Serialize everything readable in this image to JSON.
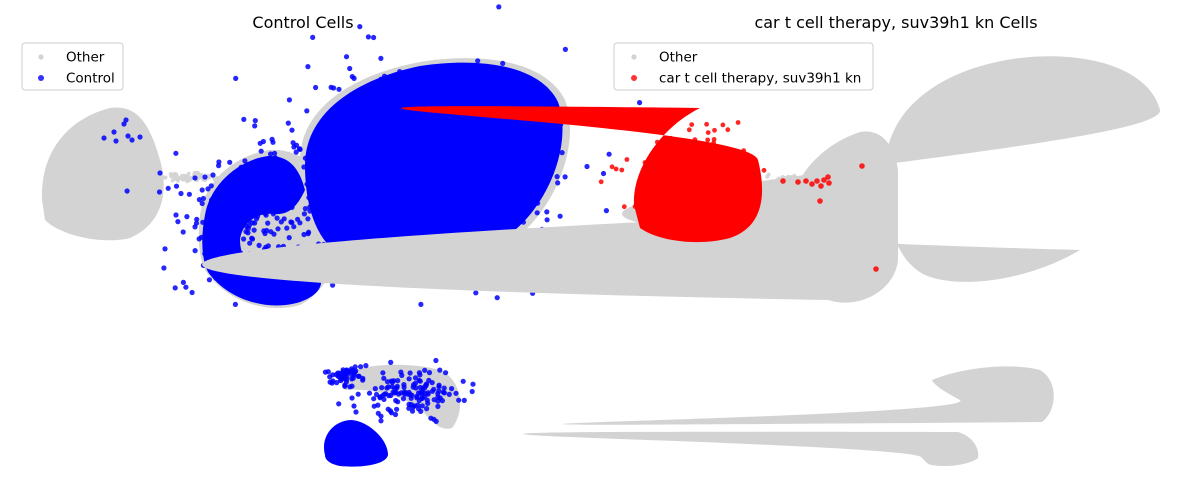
{
  "chart_data": [
    {
      "type": "scatter",
      "title": "Control Cells",
      "legend_position": "top-left",
      "grid": false,
      "axes_visible": false,
      "series": [
        {
          "name": "Other",
          "color": "#d3d3d3"
        },
        {
          "name": "Control",
          "color": "#0000ff"
        }
      ],
      "clusters": [
        {
          "region": "left-island",
          "other": true,
          "highlight_count_visible": "sparse"
        },
        {
          "region": "bridge",
          "other": true,
          "highlight_count_visible": "sparse"
        },
        {
          "region": "central-ring",
          "other": true,
          "highlight": "dense"
        },
        {
          "region": "large-main",
          "other": true,
          "highlight": "dense"
        },
        {
          "region": "lower-arc",
          "other": true,
          "highlight": "moderate"
        },
        {
          "region": "lower-blob",
          "other": true,
          "highlight": "dense"
        }
      ]
    },
    {
      "type": "scatter",
      "title": "car t cell therapy, suv39h1 kn Cells",
      "legend_position": "top-left",
      "grid": false,
      "axes_visible": false,
      "series": [
        {
          "name": "Other",
          "color": "#d3d3d3"
        },
        {
          "name": "car t cell therapy, suv39h1 kn",
          "color": "#ff0000"
        }
      ],
      "clusters": [
        {
          "region": "left-island",
          "other": true,
          "highlight": "dense"
        },
        {
          "region": "bridge",
          "other": true,
          "highlight": "sparse"
        },
        {
          "region": "central-ring",
          "other": true,
          "highlight": "sparse"
        },
        {
          "region": "large-main",
          "other": true,
          "highlight": "none"
        },
        {
          "region": "lower-arc",
          "other": true,
          "highlight": "none"
        },
        {
          "region": "lower-blob",
          "other": true,
          "highlight": "none"
        }
      ]
    }
  ]
}
